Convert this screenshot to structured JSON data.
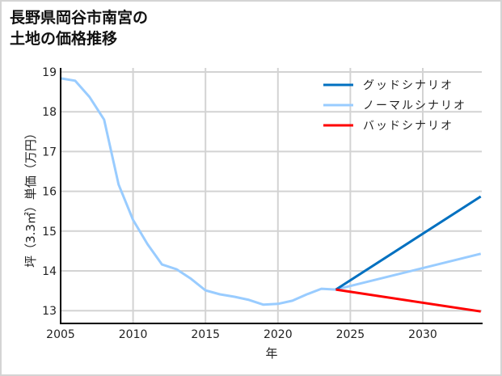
{
  "title": {
    "line1": "長野県岡谷市南宮の",
    "line2": "土地の価格推移"
  },
  "colors": {
    "good": "#0070C0",
    "normal": "#99CCFF",
    "bad": "#FF0000",
    "grid": "#D3D3D3",
    "frame": "#D4D4D4"
  },
  "chart_data": {
    "type": "line",
    "title": "長野県岡谷市南宮の土地の価格推移",
    "xlabel": "年",
    "ylabel": "坪（3.3㎡）単価（万円）",
    "xlim": [
      2005,
      2034
    ],
    "ylim": [
      12.7,
      19.1
    ],
    "x_ticks": [
      2005,
      2010,
      2015,
      2020,
      2025,
      2030
    ],
    "y_ticks": [
      13,
      14,
      15,
      16,
      17,
      18,
      19
    ],
    "grid": true,
    "legend_position": "upper right",
    "series": [
      {
        "name": "グッドシナリオ",
        "color": "#0070C0",
        "x": [
          2024,
          2034
        ],
        "values": [
          13.53,
          15.87
        ]
      },
      {
        "name": "ノーマルシナリオ",
        "color": "#99CCFF",
        "x": [
          2005,
          2006,
          2007,
          2008,
          2009,
          2010,
          2011,
          2012,
          2013,
          2014,
          2015,
          2016,
          2017,
          2018,
          2019,
          2020,
          2021,
          2022,
          2023,
          2024,
          2034
        ],
        "values": [
          18.84,
          18.78,
          18.37,
          17.8,
          16.17,
          15.28,
          14.67,
          14.16,
          14.04,
          13.8,
          13.51,
          13.41,
          13.35,
          13.27,
          13.15,
          13.17,
          13.25,
          13.41,
          13.55,
          13.53,
          14.43
        ]
      },
      {
        "name": "バッドシナリオ",
        "color": "#FF0000",
        "x": [
          2024,
          2034
        ],
        "values": [
          13.53,
          12.98
        ]
      }
    ]
  },
  "axes": {
    "x_tick_labels": [
      "2005",
      "2010",
      "2015",
      "2020",
      "2025",
      "2030"
    ],
    "y_tick_labels": [
      "13",
      "14",
      "15",
      "16",
      "17",
      "18",
      "19"
    ],
    "xlabel": "年",
    "ylabel": "坪（3.3㎡）単価（万円）"
  },
  "legend": [
    {
      "label": "グッドシナリオ",
      "color": "#0070C0"
    },
    {
      "label": "ノーマルシナリオ",
      "color": "#99CCFF"
    },
    {
      "label": "バッドシナリオ",
      "color": "#FF0000"
    }
  ]
}
